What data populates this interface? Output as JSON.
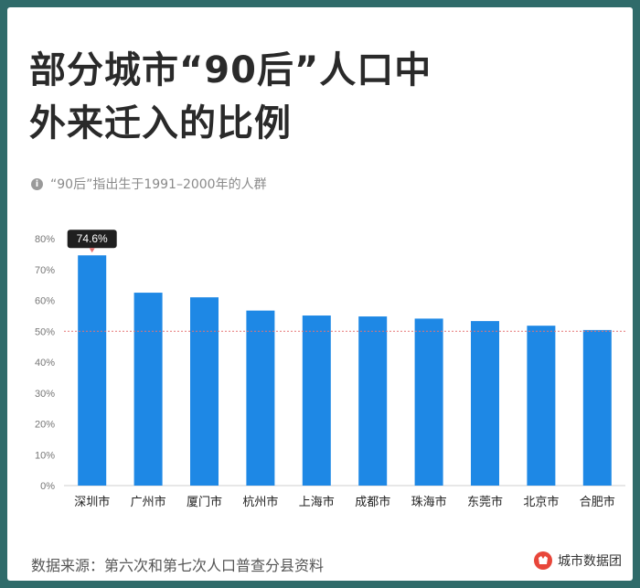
{
  "title_line1": "部分城市“90后”人口中",
  "title_line2": "外来迁入的比例",
  "subtitle": "“90后”指出生于1991–2000年的人群",
  "source": "数据来源：第六次和第七次人口普查分县资料",
  "brand": "城市数据团",
  "colors": {
    "bar": "#1e88e5",
    "ref_line": "#e57373",
    "tooltip_bg": "#1f1f1f"
  },
  "chart_data": {
    "type": "bar",
    "title": "部分城市“90后”人口中外来迁入的比例",
    "categories": [
      "深圳市",
      "广州市",
      "厦门市",
      "杭州市",
      "上海市",
      "成都市",
      "珠海市",
      "东莞市",
      "北京市",
      "合肥市"
    ],
    "values": [
      74.6,
      62.5,
      61.0,
      56.7,
      55.1,
      54.8,
      54.1,
      53.3,
      51.8,
      50.4
    ],
    "ylim": [
      0,
      80
    ],
    "yticks": [
      "0%",
      "10%",
      "20%",
      "30%",
      "40%",
      "50%",
      "60%",
      "70%",
      "80%"
    ],
    "reference_line": 50,
    "highlight_label": "74.6%",
    "xlabel": "",
    "ylabel": ""
  }
}
